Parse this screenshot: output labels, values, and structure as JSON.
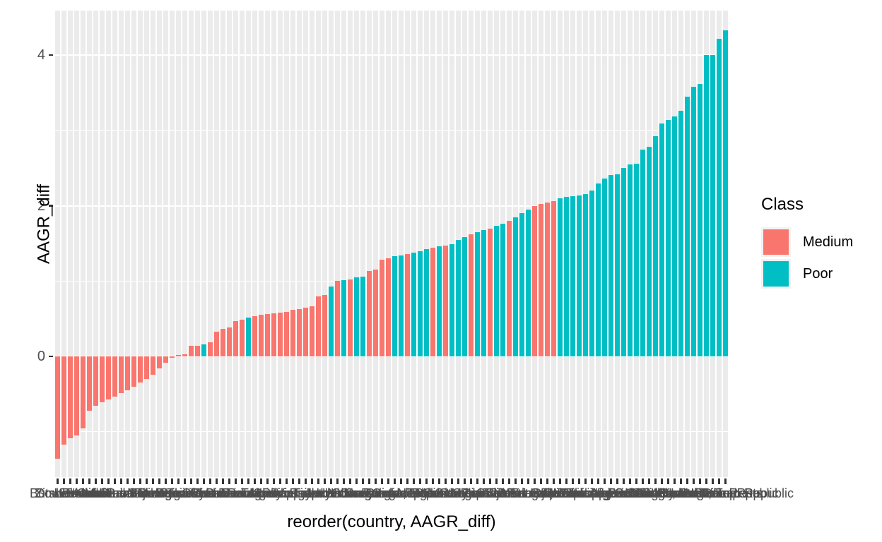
{
  "chart_data": {
    "type": "bar",
    "title": "",
    "xlabel": "reorder(country, AAGR_diff)",
    "ylabel": "AAGR_diff",
    "ylim": [
      -1.6,
      4.6
    ],
    "ytick_labels": [
      "4",
      "2",
      "0"
    ],
    "ytick_values": [
      4,
      2,
      0
    ],
    "grid": {
      "major": [
        0,
        2,
        4
      ],
      "minor": [
        -1,
        1,
        3
      ],
      "color": "#FFFFFF"
    },
    "panel_background": "#EBEBEB",
    "axis_text_color": "#4D4D4D",
    "tick_mark_color": "#333333",
    "legend": {
      "title": "Class",
      "position": "right",
      "entries": [
        {
          "label": "Medium",
          "color": "#F8766D"
        },
        {
          "label": "Poor",
          "color": "#00BFC4"
        }
      ]
    },
    "categories": [
      "Botswana",
      "Zimbabwe",
      "South Africa",
      "Lesotho",
      "Eswatini",
      "Namibia",
      "Gabon",
      "Jamaica",
      "Moldova",
      "Ukraine",
      "Trinidad and Tobago",
      "Barbados",
      "Bahamas",
      "Fiji",
      "Belize",
      "Mauritius",
      "Georgia",
      "Armenia",
      "Brazil",
      "Bulgaria",
      "Romania",
      "Thailand",
      "Kazakhstan",
      "Guyana",
      "Mexico",
      "Colombia",
      "El Salvador",
      "Panama",
      "Peru",
      "Ecuador",
      "Suriname",
      "Paraguay",
      "Tunisia",
      "Algeria",
      "Morocco",
      "Sri Lanka",
      "Indonesia",
      "Philippines",
      "Vietnam",
      "Egypt",
      "Turkey",
      "Iran",
      "Jordan",
      "Lebanon",
      "Haiti",
      "Honduras",
      "Ghana",
      "Nicaragua",
      "Kenya",
      "Cameroon",
      "Guatemala",
      "Bolivia",
      "India",
      "Bangladesh",
      "Congo, Rep.",
      "Cote d'Ivoire",
      "Nepal",
      "Togo",
      "Benin",
      "Zambia",
      "Pakistan",
      "Mauritania",
      "Cambodia",
      "Senegal",
      "Comoros",
      "Sudan",
      "Myanmar",
      "Gambia",
      "Lao PDR",
      "Guinea",
      "Liberia",
      "Tajikistan",
      "Papua New Guinea",
      "Sierra Leone",
      "Eritrea",
      "Madagascar",
      "Iraq",
      "Yemen, Rep.",
      "Djibouti",
      "Kiribati",
      "Rwanda",
      "Malawi",
      "Mozambique",
      "Ethiopia",
      "Tanzania",
      "Burkina Faso",
      "Guinea-Bissau",
      "Nigeria",
      "Uganda",
      "Afghanistan",
      "Burundi",
      "Mali",
      "Chad",
      "Somalia",
      "Angola",
      "Solomon Islands",
      "Timor-Leste",
      "Vanuatu",
      "Sao Tome and Principe",
      "Congo, Dem. Rep.",
      "South Sudan",
      "Niger",
      "Micronesia, Fed. Sts.",
      "Korea, Dem. Rep.",
      "Syrian Arab Republic",
      "Central African Republic"
    ],
    "series": [
      {
        "name": "AAGR_diff",
        "values": [
          -1.36,
          -1.17,
          -1.09,
          -1.05,
          -0.96,
          -0.72,
          -0.66,
          -0.61,
          -0.57,
          -0.53,
          -0.49,
          -0.45,
          -0.4,
          -0.35,
          -0.3,
          -0.24,
          -0.16,
          -0.08,
          -0.02,
          0.02,
          0.03,
          0.14,
          0.14,
          0.16,
          0.19,
          0.33,
          0.37,
          0.38,
          0.47,
          0.49,
          0.52,
          0.53,
          0.55,
          0.56,
          0.57,
          0.58,
          0.59,
          0.62,
          0.63,
          0.65,
          0.67,
          0.8,
          0.82,
          0.93,
          1.0,
          1.01,
          1.02,
          1.05,
          1.06,
          1.13,
          1.15,
          1.28,
          1.3,
          1.33,
          1.34,
          1.36,
          1.38,
          1.4,
          1.42,
          1.44,
          1.46,
          1.47,
          1.49,
          1.55,
          1.58,
          1.62,
          1.65,
          1.68,
          1.7,
          1.73,
          1.76,
          1.8,
          1.85,
          1.9,
          1.95,
          2.0,
          2.02,
          2.04,
          2.06,
          2.1,
          2.12,
          2.13,
          2.14,
          2.16,
          2.2,
          2.3,
          2.36,
          2.41,
          2.42,
          2.5,
          2.55,
          2.56,
          2.75,
          2.78,
          2.92,
          3.09,
          3.14,
          3.19,
          3.26,
          3.45,
          3.58,
          3.62,
          4.0,
          4.0,
          4.22,
          4.33
        ]
      }
    ],
    "classes": [
      "Medium",
      "Medium",
      "Medium",
      "Medium",
      "Medium",
      "Medium",
      "Medium",
      "Medium",
      "Medium",
      "Medium",
      "Medium",
      "Medium",
      "Medium",
      "Medium",
      "Medium",
      "Medium",
      "Medium",
      "Medium",
      "Medium",
      "Medium",
      "Medium",
      "Medium",
      "Medium",
      "Poor",
      "Medium",
      "Medium",
      "Medium",
      "Medium",
      "Medium",
      "Medium",
      "Poor",
      "Medium",
      "Medium",
      "Medium",
      "Medium",
      "Medium",
      "Medium",
      "Medium",
      "Medium",
      "Medium",
      "Medium",
      "Medium",
      "Medium",
      "Poor",
      "Medium",
      "Poor",
      "Medium",
      "Poor",
      "Poor",
      "Medium",
      "Medium",
      "Medium",
      "Medium",
      "Poor",
      "Poor",
      "Medium",
      "Poor",
      "Poor",
      "Poor",
      "Medium",
      "Poor",
      "Medium",
      "Poor",
      "Poor",
      "Poor",
      "Medium",
      "Poor",
      "Poor",
      "Medium",
      "Poor",
      "Poor",
      "Medium",
      "Poor",
      "Poor",
      "Poor",
      "Medium",
      "Medium",
      "Medium",
      "Medium",
      "Poor",
      "Poor",
      "Poor",
      "Poor",
      "Poor",
      "Poor",
      "Poor",
      "Poor",
      "Poor",
      "Poor",
      "Poor",
      "Poor",
      "Poor",
      "Poor",
      "Poor",
      "Poor",
      "Poor",
      "Poor",
      "Poor",
      "Poor",
      "Poor",
      "Poor",
      "Poor",
      "Poor",
      "Poor",
      "Poor",
      "Poor"
    ]
  }
}
